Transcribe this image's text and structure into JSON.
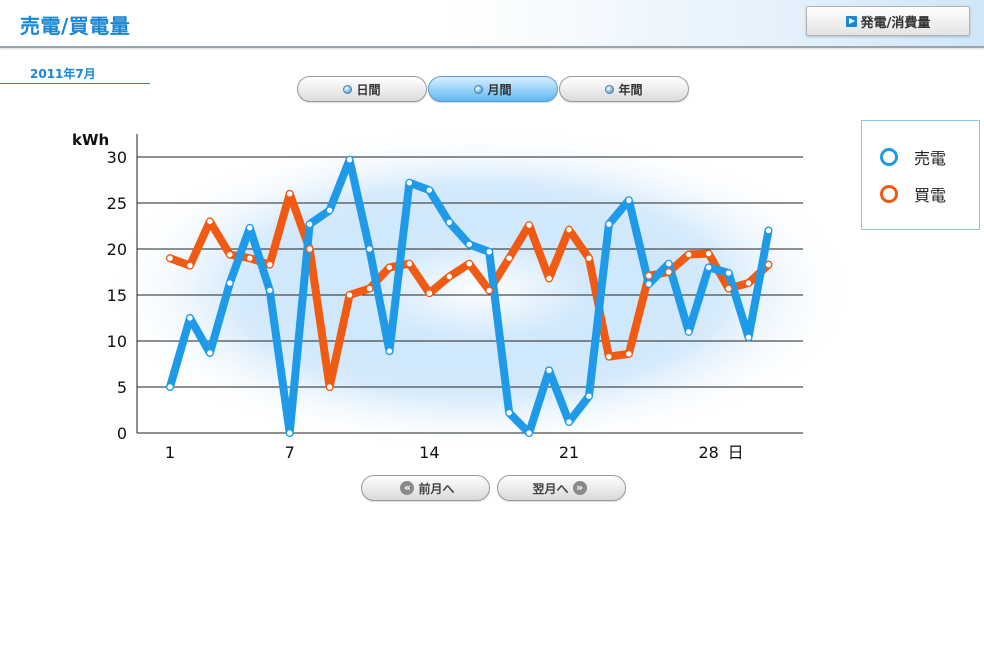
{
  "header": {
    "title": "売電/買電量",
    "button_label": "発電/消費量",
    "button_icon": "play-icon"
  },
  "period": {
    "label": "2011年7月"
  },
  "tabs": [
    {
      "label": "日間",
      "active": false
    },
    {
      "label": "月間",
      "active": true
    },
    {
      "label": "年間",
      "active": false
    }
  ],
  "nav": {
    "prev_label": "前月へ",
    "next_label": "翌月へ"
  },
  "legend": [
    {
      "label": "売電",
      "color": "#1e9ae8"
    },
    {
      "label": "買電",
      "color": "#f05a12"
    }
  ],
  "chart_data": {
    "type": "line",
    "ylabel": "kWh",
    "xlabel_suffix": "日",
    "ylim": [
      0,
      30
    ],
    "yticks": [
      0,
      5,
      10,
      15,
      20,
      25,
      30
    ],
    "xticks": [
      1,
      7,
      14,
      21,
      28
    ],
    "x": [
      1,
      2,
      3,
      4,
      5,
      6,
      7,
      8,
      9,
      10,
      11,
      12,
      13,
      14,
      15,
      16,
      17,
      18,
      19,
      20,
      21,
      22,
      23,
      24,
      25,
      26,
      27,
      28,
      29,
      30,
      31
    ],
    "grid": true,
    "legend_position": "right",
    "series": [
      {
        "name": "売電",
        "color": "#1e9ae8",
        "values": [
          5,
          12.5,
          8.7,
          16.3,
          22.3,
          15.5,
          0,
          22.7,
          24.2,
          29.7,
          20,
          8.9,
          27.2,
          26.4,
          22.9,
          20.5,
          19.7,
          2.2,
          0,
          6.8,
          1.2,
          4,
          22.7,
          25.3,
          16.2,
          18.4,
          11,
          18,
          17.4,
          10.4,
          22
        ]
      },
      {
        "name": "買電",
        "color": "#f05a12",
        "values": [
          19,
          18.2,
          23,
          19.4,
          19,
          18.3,
          26,
          20,
          5,
          15,
          15.7,
          18,
          18.4,
          15.2,
          17,
          18.4,
          15.5,
          19,
          22.6,
          16.8,
          22.1,
          19,
          8.3,
          8.6,
          17.1,
          17.5,
          19.4,
          19.5,
          15.7,
          16.3,
          18.3
        ]
      }
    ]
  }
}
